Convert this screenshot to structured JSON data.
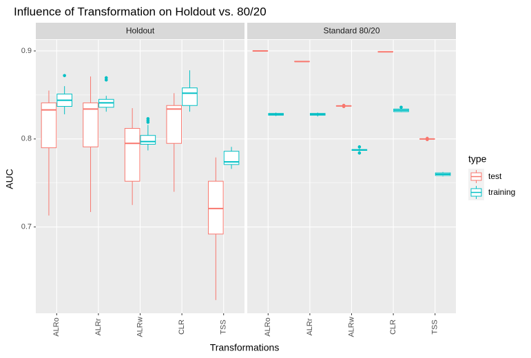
{
  "chart_data": {
    "type": "boxplot",
    "title": "Influence of Transformation on Holdout vs. 80/20",
    "x_label": "Transformations",
    "y_label": "AUC",
    "legend_title": "type",
    "ylim": [
      0.602,
      0.9125
    ],
    "yticks": [
      0.7,
      0.8,
      0.9
    ],
    "grid": true,
    "panels": [
      {
        "title": "Holdout",
        "categories": [
          "ALRo",
          "ALRr",
          "ALRw",
          "CLR",
          "TSS"
        ]
      },
      {
        "title": "Standard 80/20",
        "categories": [
          "ALRo",
          "ALRr",
          "ALRw",
          "CLR",
          "TSS"
        ]
      }
    ],
    "series": [
      {
        "name": "test",
        "color": "#F8766D",
        "boxes": [
          [
            {
              "min": 0.713,
              "q1": 0.79,
              "median": 0.833,
              "q3": 0.841,
              "max": 0.855,
              "outliers": []
            },
            {
              "min": 0.717,
              "q1": 0.791,
              "median": 0.834,
              "q3": 0.841,
              "max": 0.871,
              "outliers": []
            },
            {
              "min": 0.725,
              "q1": 0.752,
              "median": 0.795,
              "q3": 0.812,
              "max": 0.835,
              "outliers": []
            },
            {
              "min": 0.74,
              "q1": 0.795,
              "median": 0.834,
              "q3": 0.838,
              "max": 0.852,
              "outliers": []
            },
            {
              "min": 0.617,
              "q1": 0.692,
              "median": 0.721,
              "q3": 0.752,
              "max": 0.779,
              "outliers": []
            }
          ],
          [
            {
              "min": 0.8995,
              "q1": 0.8998,
              "median": 0.9,
              "q3": 0.9002,
              "max": 0.9005,
              "outliers": []
            },
            {
              "min": 0.8875,
              "q1": 0.8878,
              "median": 0.888,
              "q3": 0.8882,
              "max": 0.8885,
              "outliers": []
            },
            {
              "min": 0.837,
              "q1": 0.8373,
              "median": 0.8375,
              "q3": 0.8377,
              "max": 0.838,
              "outliers": [
                0.8368,
                0.8382
              ]
            },
            {
              "min": 0.8985,
              "q1": 0.8988,
              "median": 0.899,
              "q3": 0.8992,
              "max": 0.8995,
              "outliers": []
            },
            {
              "min": 0.7995,
              "q1": 0.7998,
              "median": 0.8,
              "q3": 0.8002,
              "max": 0.8005,
              "outliers": [
                0.7993,
                0.8007
              ]
            }
          ]
        ]
      },
      {
        "name": "training",
        "color": "#00BFC4",
        "boxes": [
          [
            {
              "min": 0.828,
              "q1": 0.837,
              "median": 0.844,
              "q3": 0.851,
              "max": 0.86,
              "outliers": [
                0.872
              ]
            },
            {
              "min": 0.831,
              "q1": 0.836,
              "median": 0.841,
              "q3": 0.845,
              "max": 0.849,
              "outliers": [
                0.8695,
                0.867
              ]
            },
            {
              "min": 0.787,
              "q1": 0.794,
              "median": 0.797,
              "q3": 0.804,
              "max": 0.816,
              "outliers": [
                0.823,
                0.821,
                0.819
              ]
            },
            {
              "min": 0.831,
              "q1": 0.838,
              "median": 0.852,
              "q3": 0.858,
              "max": 0.878,
              "outliers": []
            },
            {
              "min": 0.766,
              "q1": 0.771,
              "median": 0.774,
              "q3": 0.786,
              "max": 0.791,
              "outliers": []
            }
          ],
          [
            {
              "min": 0.826,
              "q1": 0.827,
              "median": 0.828,
              "q3": 0.829,
              "max": 0.83,
              "outliers": []
            },
            {
              "min": 0.8255,
              "q1": 0.827,
              "median": 0.828,
              "q3": 0.829,
              "max": 0.83,
              "outliers": []
            },
            {
              "min": 0.786,
              "q1": 0.787,
              "median": 0.7875,
              "q3": 0.788,
              "max": 0.789,
              "outliers": [
                0.791,
                0.784
              ]
            },
            {
              "min": 0.8305,
              "q1": 0.831,
              "median": 0.8325,
              "q3": 0.834,
              "max": 0.8345,
              "outliers": [
                0.836
              ]
            },
            {
              "min": 0.7575,
              "q1": 0.7585,
              "median": 0.76,
              "q3": 0.7615,
              "max": 0.7625,
              "outliers": []
            }
          ]
        ]
      }
    ]
  }
}
